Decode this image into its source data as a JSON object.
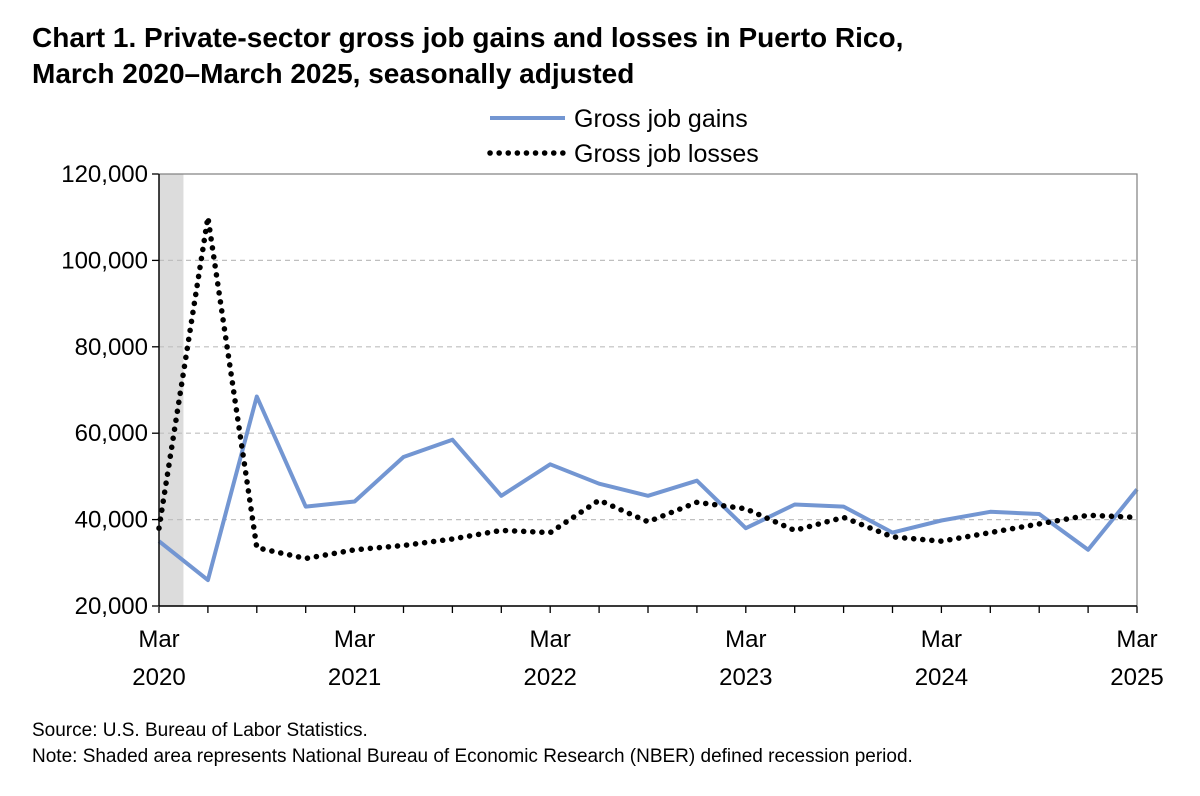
{
  "title_line1": "Chart 1. Private-sector gross job gains and losses in Puerto Rico,",
  "title_line2": "March 2020–March 2025, seasonally adjusted",
  "source": "Source: U.S. Bureau of Labor Statistics.",
  "note": "Note: Shaded area represents National Bureau of Economic Research (NBER) defined recession period.",
  "colors": {
    "gains": "#7396d2",
    "losses": "#000000",
    "recession": "#dcdcdc",
    "grid": "#bfbfbf"
  },
  "chart_data": {
    "type": "line",
    "title": "Chart 1. Private-sector gross job gains and losses in Puerto Rico, March 2020–March 2025, seasonally adjusted",
    "x": [
      "Mar 2020",
      "Jun 2020",
      "Sep 2020",
      "Dec 2020",
      "Mar 2021",
      "Jun 2021",
      "Sep 2021",
      "Dec 2021",
      "Mar 2022",
      "Jun 2022",
      "Sep 2022",
      "Dec 2022",
      "Mar 2023",
      "Jun 2023",
      "Sep 2023",
      "Dec 2023",
      "Mar 2024",
      "Jun 2024",
      "Sep 2024",
      "Dec 2024",
      "Mar 2025"
    ],
    "x_tick_labels": [
      {
        "month": "Mar",
        "year": "2020",
        "index": 0
      },
      {
        "month": "Mar",
        "year": "2021",
        "index": 4
      },
      {
        "month": "Mar",
        "year": "2022",
        "index": 8
      },
      {
        "month": "Mar",
        "year": "2023",
        "index": 12
      },
      {
        "month": "Mar",
        "year": "2024",
        "index": 16
      },
      {
        "month": "Mar",
        "year": "2025",
        "index": 20
      }
    ],
    "y_tick_labels": [
      "20,000",
      "40,000",
      "60,000",
      "80,000",
      "100,000",
      "120,000"
    ],
    "y_ticks": [
      20000,
      40000,
      60000,
      80000,
      100000,
      120000
    ],
    "ylim": [
      20000,
      120000
    ],
    "grid": true,
    "legend_position": "top-center",
    "recession_shading": {
      "start_index": 0,
      "end_index": 0.5
    },
    "series": [
      {
        "name": "Gross job gains",
        "style": "solid",
        "values": [
          35000,
          26000,
          68500,
          43000,
          44200,
          54500,
          58500,
          45500,
          52800,
          48300,
          45500,
          49000,
          38000,
          43500,
          43000,
          37000,
          39800,
          41800,
          41300,
          33000,
          47000
        ]
      },
      {
        "name": "Gross job losses",
        "style": "dotted",
        "values": [
          38000,
          110000,
          33500,
          31000,
          33000,
          34000,
          35500,
          37500,
          37000,
          44500,
          39500,
          44000,
          42500,
          37500,
          40500,
          36000,
          35000,
          37000,
          39000,
          41000,
          40500
        ]
      }
    ]
  }
}
